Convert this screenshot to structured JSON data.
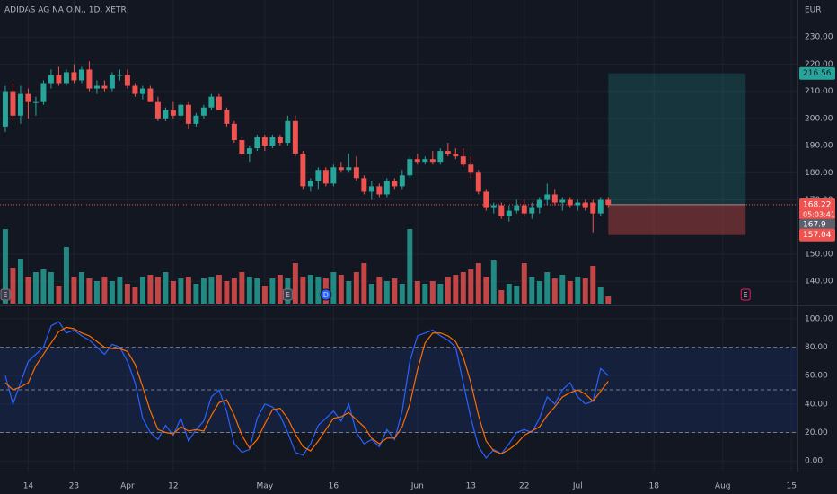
{
  "chart_data": {
    "type": "candlestick",
    "title": "ADIDAS AG NA O.N., 1D, XETR",
    "currency": "EUR",
    "up_color": "#26a69a",
    "down_color": "#ef5350",
    "grid": true,
    "xlim": [
      -0.7,
      103.8
    ],
    "xticks": [
      {
        "value": 3,
        "label": "14"
      },
      {
        "value": 9,
        "label": "23"
      },
      {
        "value": 16,
        "label": "Apr"
      },
      {
        "value": 22,
        "label": "12"
      },
      {
        "value": 34,
        "label": "May"
      },
      {
        "value": 43,
        "label": "16"
      },
      {
        "value": 54,
        "label": "Jun"
      },
      {
        "value": 61,
        "label": "13"
      },
      {
        "value": 68,
        "label": "22"
      },
      {
        "value": 75,
        "label": "Jul"
      },
      {
        "value": 85,
        "label": "18"
      },
      {
        "value": 94,
        "label": "Aug"
      },
      {
        "value": 103,
        "label": "15"
      }
    ],
    "ylim": [
      131.8,
      243.6
    ],
    "yticks": [
      {
        "value": 140,
        "label": "140.00"
      },
      {
        "value": 150,
        "label": "150.00"
      },
      {
        "value": 170,
        "label": "170.00"
      },
      {
        "value": 180,
        "label": "180.00"
      },
      {
        "value": 190,
        "label": "190.00"
      },
      {
        "value": 200,
        "label": "200.00"
      },
      {
        "value": 210,
        "label": "210.00"
      },
      {
        "value": 220,
        "label": "220.00"
      },
      {
        "value": 230,
        "label": "230.00"
      }
    ],
    "open": [
      197,
      210,
      201,
      209,
      206,
      206,
      213,
      216,
      213,
      217,
      214,
      218,
      211,
      212,
      211,
      216,
      216,
      212,
      209,
      211,
      206,
      200,
      203,
      201,
      205,
      198,
      201,
      204,
      208,
      203,
      198,
      192,
      187,
      189,
      193,
      190,
      193,
      191,
      199,
      187,
      175,
      177,
      181,
      176,
      182,
      181,
      182,
      178,
      173,
      175,
      172,
      177,
      175,
      179,
      185,
      184,
      185,
      184,
      188,
      187,
      186,
      183,
      180,
      173,
      167,
      168,
      164,
      166,
      168,
      165,
      167,
      170,
      172,
      169,
      170,
      168,
      169,
      169,
      165,
      170
    ],
    "high": [
      212,
      213,
      212,
      211,
      208,
      214,
      218,
      219,
      218,
      220,
      219,
      221,
      214,
      214,
      217,
      218,
      218,
      213,
      212,
      212,
      208,
      204,
      206,
      206,
      206,
      202,
      205,
      209,
      209,
      204,
      199,
      193,
      190,
      194,
      194,
      194,
      194,
      201,
      201,
      188,
      178,
      182,
      182,
      183,
      184,
      187,
      186,
      179,
      177,
      176,
      178,
      178,
      181,
      186,
      187,
      186,
      188,
      189,
      191,
      189,
      189,
      186,
      181,
      174,
      169,
      169,
      168,
      170,
      170,
      169,
      171,
      176,
      174,
      171,
      171,
      170,
      170,
      170,
      171,
      171
    ],
    "low": [
      195,
      199,
      198,
      200,
      201,
      205,
      211,
      212,
      212,
      213,
      213,
      210,
      209,
      210,
      210,
      214,
      211,
      208,
      207,
      206,
      199,
      199,
      200,
      200,
      196,
      197,
      200,
      203,
      203,
      197,
      191,
      186,
      184,
      188,
      188,
      189,
      190,
      190,
      186,
      174,
      173,
      174,
      175,
      175,
      180,
      180,
      177,
      172,
      170,
      171,
      171,
      174,
      174,
      178,
      183,
      183,
      183,
      183,
      186,
      185,
      182,
      178,
      172,
      166,
      165,
      163,
      162,
      165,
      164,
      163,
      165,
      168,
      168,
      166,
      167,
      166,
      166,
      158,
      164,
      167
    ],
    "close": [
      210,
      201,
      209,
      206,
      206,
      213,
      216,
      213,
      217,
      214,
      218,
      211,
      212,
      211,
      216,
      216,
      212,
      209,
      211,
      206,
      200,
      203,
      201,
      205,
      198,
      201,
      204,
      208,
      203,
      198,
      192,
      187,
      189,
      193,
      190,
      193,
      191,
      199,
      187,
      175,
      177,
      181,
      176,
      182,
      181,
      182,
      178,
      173,
      175,
      172,
      177,
      175,
      179,
      185,
      184,
      185,
      184,
      188,
      187,
      186,
      183,
      180,
      173,
      167,
      168,
      164,
      166,
      168,
      165,
      167,
      170,
      172,
      169,
      170,
      168,
      169,
      167,
      165,
      170,
      168.22
    ],
    "volume": [
      83,
      40,
      50,
      30,
      35,
      38,
      35,
      20,
      63,
      30,
      35,
      28,
      25,
      30,
      25,
      30,
      22,
      18,
      30,
      32,
      30,
      35,
      25,
      28,
      30,
      22,
      28,
      30,
      32,
      25,
      28,
      35,
      30,
      28,
      20,
      28,
      32,
      28,
      45,
      30,
      32,
      30,
      28,
      35,
      32,
      25,
      35,
      45,
      22,
      30,
      25,
      28,
      22,
      83,
      25,
      22,
      25,
      22,
      30,
      32,
      35,
      38,
      45,
      30,
      48,
      15,
      22,
      20,
      45,
      30,
      25,
      35,
      28,
      32,
      25,
      30,
      28,
      42,
      18,
      8
    ],
    "volume_ylim": [
      0,
      100
    ],
    "last_price_line": 168.22,
    "position": {
      "target": 216.56,
      "entry": 168.22,
      "stop": 157.04,
      "x_start": 79,
      "x_end": 97
    },
    "price_labels": {
      "countdown": "05:03:41",
      "previous": 167.9
    },
    "events": [
      {
        "label": "E",
        "x": 0
      },
      {
        "label": "E",
        "x": 37
      },
      {
        "label": "D",
        "x": 42
      },
      {
        "label": "E",
        "x": 97
      }
    ],
    "oscillator": {
      "type": "line",
      "ylim": [
        -7.5,
        108.8
      ],
      "yticks": [
        {
          "value": 0,
          "label": "0.00"
        },
        {
          "value": 20,
          "label": "20.00"
        },
        {
          "value": 40,
          "label": "40.00"
        },
        {
          "value": 60,
          "label": "60.00"
        },
        {
          "value": 80,
          "label": "80.00"
        },
        {
          "value": 100,
          "label": "100.00"
        }
      ],
      "bands": [
        20,
        50,
        80
      ],
      "band_color": "rgba(41,98,255,0.12)",
      "series": [
        {
          "color": "#2962ff",
          "values": [
            60,
            40,
            55,
            70,
            75,
            80,
            95,
            98,
            90,
            92,
            88,
            85,
            80,
            75,
            82,
            80,
            70,
            55,
            30,
            20,
            15,
            25,
            18,
            30,
            14,
            22,
            28,
            45,
            50,
            35,
            12,
            6,
            8,
            30,
            40,
            38,
            32,
            20,
            6,
            4,
            12,
            25,
            30,
            35,
            28,
            40,
            20,
            12,
            15,
            10,
            22,
            15,
            35,
            70,
            88,
            90,
            92,
            88,
            85,
            80,
            55,
            30,
            10,
            2,
            8,
            5,
            12,
            20,
            22,
            20,
            30,
            45,
            40,
            50,
            55,
            45,
            40,
            42,
            65,
            60
          ]
        },
        {
          "color": "#ff6d00",
          "values": [
            55,
            50,
            52,
            55,
            67,
            75,
            83,
            91,
            94,
            93,
            90,
            88,
            84,
            80,
            79,
            79,
            77,
            68,
            52,
            35,
            22,
            20,
            19,
            24,
            21,
            22,
            21,
            32,
            41,
            43,
            32,
            18,
            9,
            15,
            26,
            36,
            37,
            30,
            19,
            10,
            7,
            14,
            22,
            30,
            31,
            34,
            29,
            24,
            16,
            12,
            16,
            16,
            24,
            40,
            64,
            83,
            90,
            90,
            88,
            84,
            73,
            55,
            32,
            14,
            7,
            5,
            8,
            12,
            18,
            21,
            24,
            32,
            38,
            45,
            48,
            50,
            47,
            42,
            49,
            56
          ]
        }
      ]
    }
  }
}
